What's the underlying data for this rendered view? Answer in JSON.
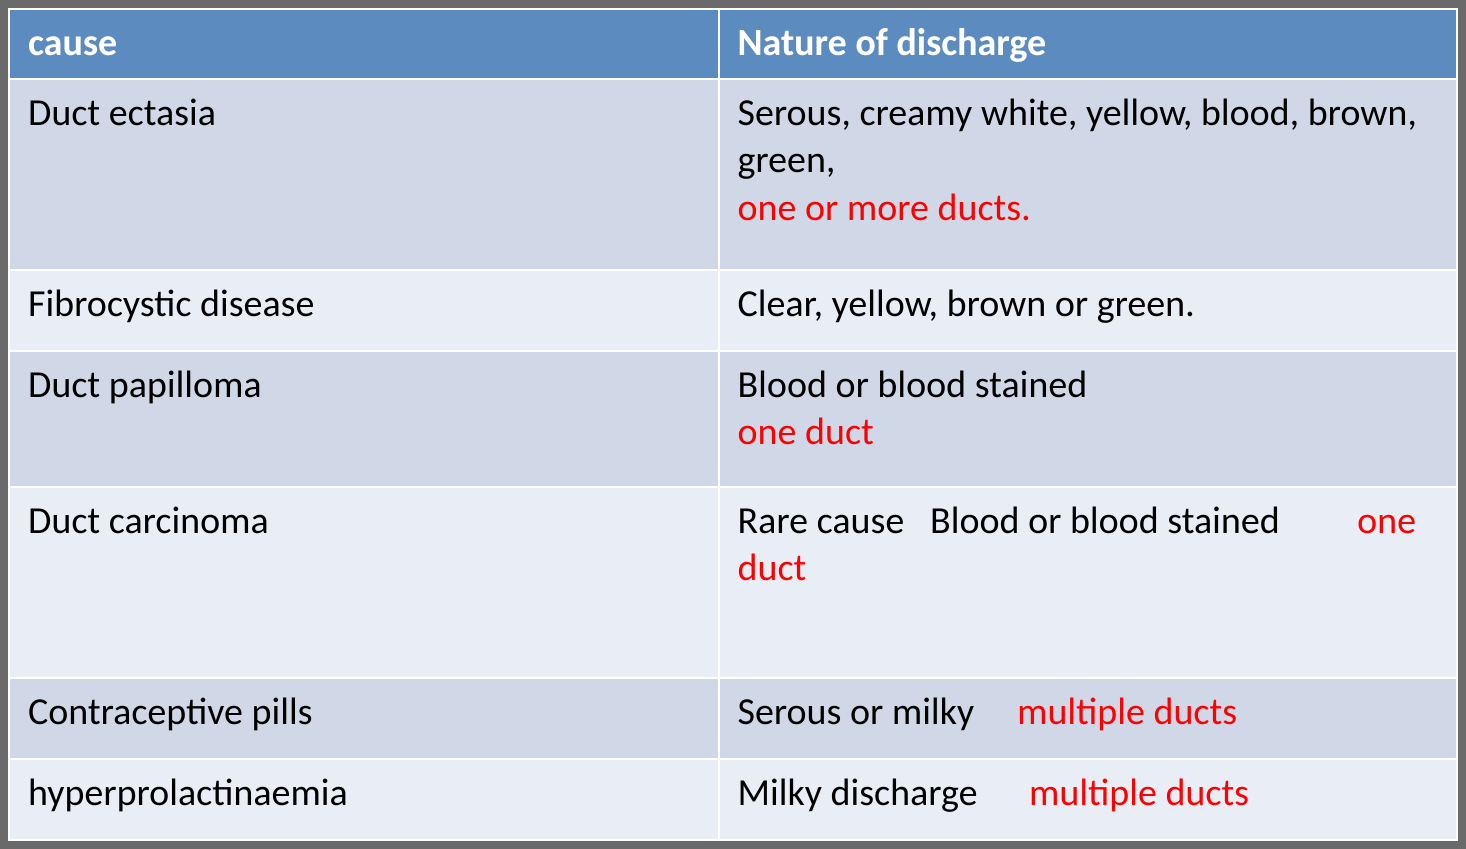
{
  "table": {
    "colors": {
      "header_bg": "#5b8bbf",
      "header_fg": "#ffffff",
      "band_a_bg": "#d0d7e7",
      "band_b_bg": "#e9edf5",
      "text_black": "#000000",
      "text_red": "#ff0000",
      "outer_bg": "#6a6a6a",
      "cell_border": "#ffffff"
    },
    "font": {
      "family": "Calibri",
      "size_pt": 28,
      "header_weight": "bold",
      "body_weight": "normal"
    },
    "column_widths_pct": [
      49,
      51
    ],
    "headers": {
      "cause": "cause",
      "nature": "Nature of discharge"
    },
    "rows": [
      {
        "band": "a",
        "cause": "Duct ectasia",
        "nature": [
          {
            "text": "Serous, creamy white, yellow, blood, brown, green,",
            "color": "black",
            "break_after": true
          },
          {
            "text": "one or more ducts.",
            "color": "red"
          }
        ]
      },
      {
        "band": "b",
        "cause": "Fibrocystic disease",
        "nature": [
          {
            "text": "Clear, yellow, brown or green.",
            "color": "black"
          }
        ]
      },
      {
        "band": "a",
        "cause": "Duct papilloma",
        "nature": [
          {
            "text": "Blood or blood stained",
            "color": "black",
            "break_after": true
          },
          {
            "text": "one duct",
            "color": "red"
          }
        ]
      },
      {
        "band": "b",
        "cause": "Duct carcinoma",
        "nature": [
          {
            "text": "Rare cause   Blood or blood stained         ",
            "color": "black"
          },
          {
            "text": "one duct",
            "color": "red",
            "break_after": true
          },
          {
            "text": " ",
            "color": "black"
          }
        ]
      },
      {
        "band": "a",
        "cause": "Contraceptive pills",
        "nature": [
          {
            "text": "Serous or milky     ",
            "color": "black"
          },
          {
            "text": "multiple ducts",
            "color": "red"
          }
        ]
      },
      {
        "band": "b",
        "cause": "hyperprolactinaemia",
        "nature": [
          {
            "text": "Milky discharge      ",
            "color": "black"
          },
          {
            "text": "multiple ducts",
            "color": "red"
          }
        ]
      }
    ]
  }
}
